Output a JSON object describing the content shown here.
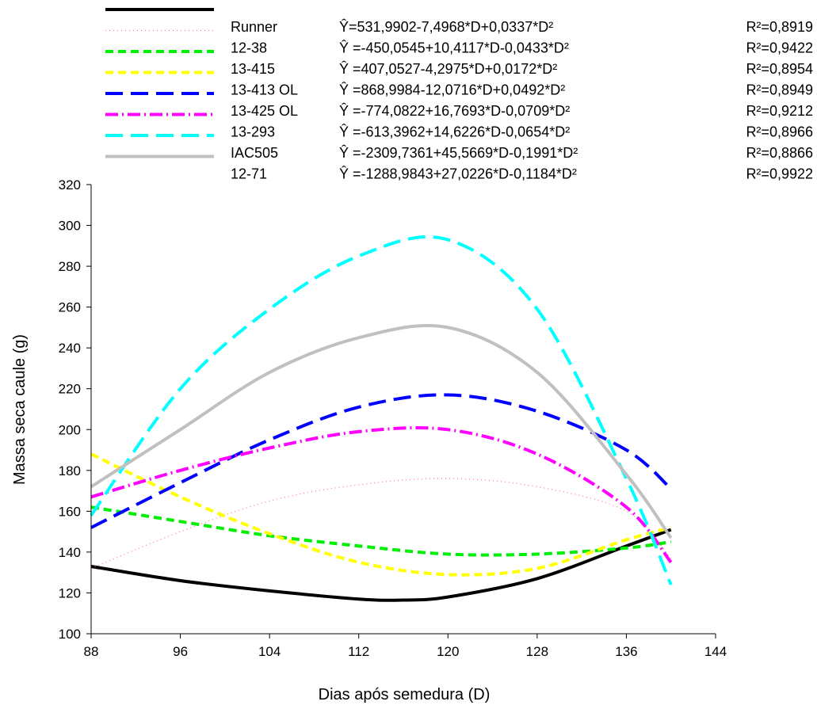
{
  "chart_data": {
    "type": "line",
    "title": "",
    "xlabel": "Dias após semedura (D)",
    "ylabel": "Massa seca caule (g)",
    "xlim": [
      88,
      144
    ],
    "ylim": [
      100,
      320
    ],
    "xticks": [
      88,
      96,
      104,
      112,
      120,
      128,
      136,
      144
    ],
    "yticks": [
      100,
      120,
      140,
      160,
      180,
      200,
      220,
      240,
      260,
      280,
      300,
      320
    ],
    "x_range": [
      88,
      140
    ],
    "grid": false,
    "legend_position": "top",
    "series": [
      {
        "name": "Runner",
        "equation": "Ŷ=531,9902-7,4968*D+0,0337*D²",
        "r2": "R²=0,8919",
        "color": "#000000",
        "dash": "solid",
        "coef": [
          531.9902,
          -7.4968,
          0.0337
        ],
        "x": [
          88,
          96,
          104,
          112,
          116,
          120,
          128,
          136,
          140
        ],
        "values": [
          133,
          126,
          121,
          117,
          116.5,
          118,
          127,
          143,
          151
        ]
      },
      {
        "name": "12-38",
        "equation": "Ŷ =-450,0545+10,4117*D-0,0433*D²",
        "r2": "R²=0,9422",
        "color": "#ff8080",
        "dash": "dotted",
        "coef": [
          -450.0545,
          10.4117,
          -0.0433
        ],
        "x": [
          88,
          96,
          104,
          112,
          120,
          128,
          136,
          140
        ],
        "values": [
          132,
          150,
          165,
          173,
          176,
          172,
          160,
          137
        ]
      },
      {
        "name": "13-415",
        "equation": "Ŷ =407,0527-4,2975*D+0,0172*D²",
        "r2": "R²=0,8954",
        "color": "#00ee00",
        "dash": "dashed",
        "coef": [
          407.0527,
          -4.2975,
          0.0172
        ],
        "x": [
          88,
          96,
          104,
          112,
          120,
          128,
          136,
          140
        ],
        "values": [
          162,
          155,
          148,
          143,
          139,
          139,
          142,
          145
        ]
      },
      {
        "name": "13-413 OL",
        "equation": "Ŷ =868,9984-12,0716*D+0,0492*D²",
        "r2": "R²=0,8949",
        "color": "#ffff00",
        "dash": "dashed",
        "coef": [
          868.9984,
          -12.0716,
          0.0492
        ],
        "x": [
          88,
          96,
          104,
          112,
          120,
          128,
          136,
          140
        ],
        "values": [
          188,
          167,
          149,
          135,
          129,
          132,
          146,
          152
        ]
      },
      {
        "name": "13-425 OL",
        "equation": "Ŷ =-774,0822+16,7693*D-0,0709*D²",
        "r2": "R²=0,9212",
        "color": "#0000ff",
        "dash": "longdash",
        "coef": [
          -774.0822,
          16.7693,
          -0.0709
        ],
        "x": [
          88,
          96,
          104,
          112,
          120,
          128,
          136,
          140
        ],
        "values": [
          152,
          174,
          195,
          211,
          217,
          209,
          190,
          171
        ]
      },
      {
        "name": "13-293",
        "equation": "Ŷ =-613,3962+14,6226*D-0,0654*D²",
        "r2": "R²=0,8966",
        "color": "#ff00ff",
        "dash": "dashdot",
        "coef": [
          -613.3962,
          14.6226,
          -0.0654
        ],
        "x": [
          88,
          96,
          104,
          112,
          120,
          128,
          136,
          140
        ],
        "values": [
          167,
          180,
          191,
          199,
          200,
          188,
          162,
          135
        ]
      },
      {
        "name": "IAC505",
        "equation": "Ŷ =-2309,7361+45,5669*D-0,1991*D²",
        "r2": "R²=0,8866",
        "color": "#00ffff",
        "dash": "longdash",
        "coef": [
          -2309.7361,
          45.5669,
          -0.1991
        ],
        "x": [
          88,
          96,
          104,
          112,
          120,
          128,
          136,
          140
        ],
        "values": [
          158,
          220,
          259,
          285,
          293,
          259,
          176,
          124
        ]
      },
      {
        "name": "12-71",
        "equation": "Ŷ =-1288,9843+27,0226*D-0,1184*D²",
        "r2": "R²=0,9922",
        "color": "#c0c0c0",
        "dash": "solid",
        "coef": [
          -1288.9843,
          27.0226,
          -0.1184
        ],
        "x": [
          88,
          96,
          104,
          112,
          120,
          128,
          136,
          140
        ],
        "values": [
          172,
          200,
          228,
          245,
          250,
          228,
          178,
          147
        ]
      }
    ]
  }
}
